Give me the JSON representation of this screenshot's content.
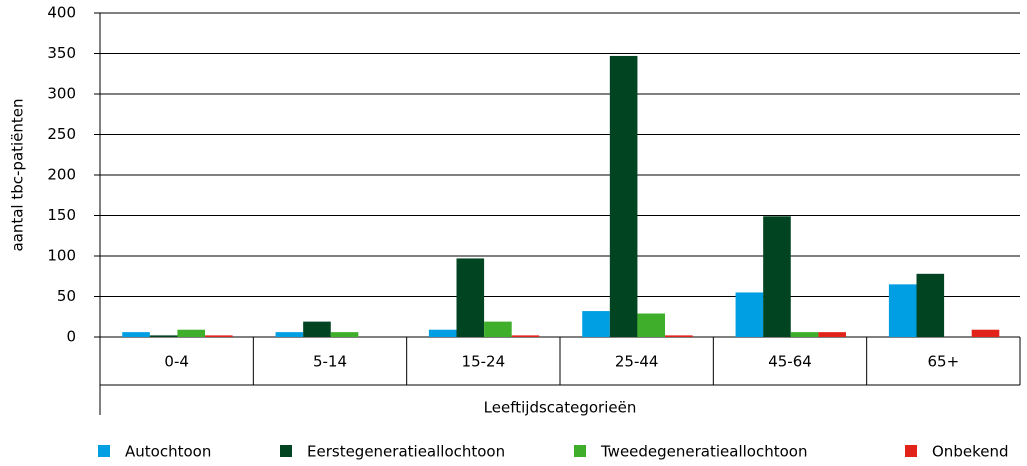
{
  "chart_data": {
    "type": "bar",
    "y_label": "aantal tbc-patiënten",
    "x_label": "Leeftijdscategorieën",
    "categories": [
      "0-4",
      "5-14",
      "15-24",
      "25-44",
      "45-64",
      "65+"
    ],
    "series": [
      {
        "name": "Autochtoon",
        "color": "#009fe3",
        "values": [
          6,
          6,
          9,
          32,
          55,
          65
        ]
      },
      {
        "name": "Eerstegeneratieallochtoon",
        "color": "#004422",
        "values": [
          2,
          19,
          97,
          347,
          149,
          78
        ]
      },
      {
        "name": "Tweedegeneratieallochtoon",
        "color": "#3fae2a",
        "values": [
          9,
          6,
          19,
          29,
          6,
          0
        ]
      },
      {
        "name": "Onbekend",
        "color": "#e2231a",
        "values": [
          2,
          0,
          2,
          2,
          6,
          9
        ]
      }
    ],
    "ylim": [
      0,
      400
    ],
    "yticks": [
      0,
      50,
      100,
      150,
      200,
      250,
      300,
      350,
      400
    ],
    "grid": true
  }
}
